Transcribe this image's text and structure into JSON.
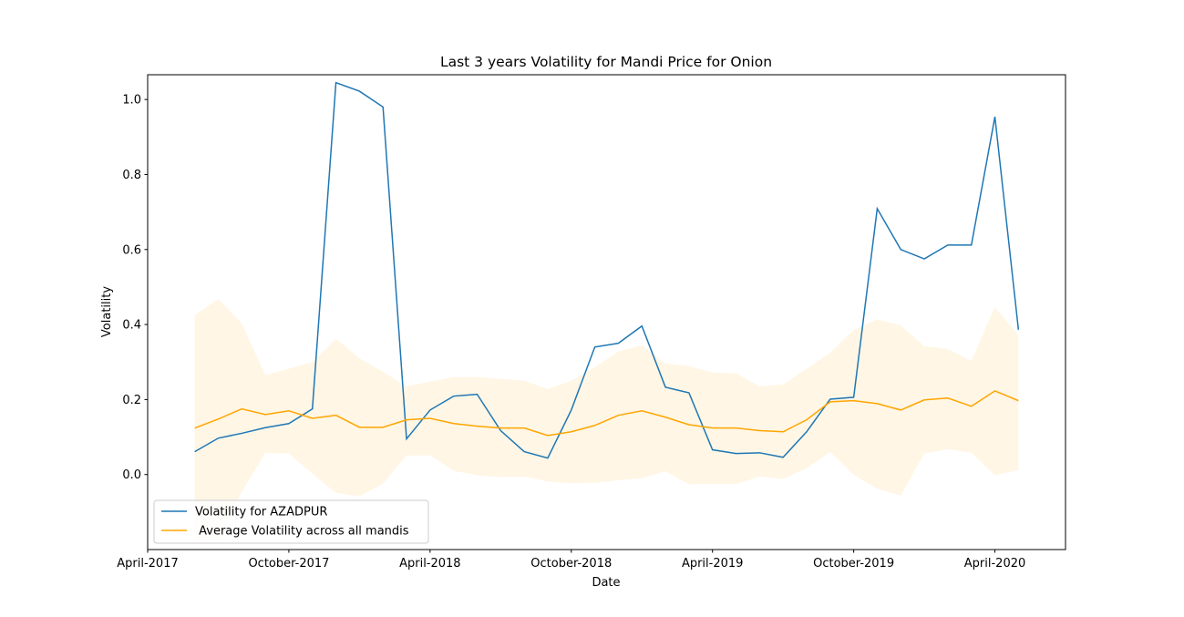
{
  "chart_data": {
    "type": "line",
    "title": "Last 3 years Volatility for Mandi Price for Onion",
    "xlabel": "Date",
    "ylabel": "Volatility",
    "x": [
      "2017-06",
      "2017-07",
      "2017-08",
      "2017-09",
      "2017-10",
      "2017-11",
      "2017-12",
      "2018-01",
      "2018-02",
      "2018-03",
      "2018-04",
      "2018-05",
      "2018-06",
      "2018-07",
      "2018-08",
      "2018-09",
      "2018-10",
      "2018-11",
      "2018-12",
      "2019-01",
      "2019-02",
      "2019-03",
      "2019-04",
      "2019-05",
      "2019-06",
      "2019-07",
      "2019-08",
      "2019-09",
      "2019-10",
      "2019-11",
      "2019-12",
      "2020-01",
      "2020-02",
      "2020-03",
      "2020-04",
      "2020-05"
    ],
    "series": [
      {
        "name": "Volatility for AZADPUR",
        "color": "#1f77b4",
        "values": [
          0.061,
          0.097,
          0.11,
          0.125,
          0.136,
          0.175,
          1.045,
          1.022,
          0.98,
          0.095,
          0.172,
          0.209,
          0.214,
          0.117,
          0.061,
          0.044,
          0.172,
          0.34,
          0.35,
          0.396,
          0.233,
          0.218,
          0.066,
          0.056,
          0.058,
          0.046,
          0.114,
          0.201,
          0.206,
          0.709,
          0.6,
          0.575,
          0.612,
          0.612,
          0.954,
          0.386
        ]
      },
      {
        "name": " Average Volatility across all mandis",
        "color": "#ffa500",
        "values": [
          0.124,
          0.148,
          0.175,
          0.16,
          0.17,
          0.15,
          0.158,
          0.126,
          0.126,
          0.146,
          0.15,
          0.136,
          0.129,
          0.124,
          0.124,
          0.104,
          0.114,
          0.131,
          0.158,
          0.17,
          0.153,
          0.133,
          0.124,
          0.124,
          0.117,
          0.114,
          0.146,
          0.194,
          0.197,
          0.189,
          0.172,
          0.199,
          0.204,
          0.182,
          0.223,
          0.197
        ]
      }
    ],
    "band": {
      "color": "#ffa500",
      "opacity": 0.1,
      "upper": [
        0.425,
        0.468,
        0.403,
        0.265,
        0.282,
        0.3,
        0.362,
        0.31,
        0.274,
        0.235,
        0.248,
        0.26,
        0.26,
        0.255,
        0.25,
        0.228,
        0.25,
        0.286,
        0.328,
        0.345,
        0.296,
        0.289,
        0.272,
        0.27,
        0.235,
        0.24,
        0.282,
        0.325,
        0.386,
        0.413,
        0.398,
        0.342,
        0.335,
        0.303,
        0.447,
        0.371
      ],
      "lower": [
        -0.177,
        -0.172,
        -0.046,
        0.058,
        0.056,
        0.002,
        -0.049,
        -0.058,
        -0.024,
        0.051,
        0.051,
        0.01,
        -0.002,
        -0.007,
        -0.005,
        -0.019,
        -0.023,
        -0.022,
        -0.015,
        -0.01,
        0.009,
        -0.026,
        -0.025,
        -0.025,
        -0.005,
        -0.012,
        0.017,
        0.06,
        0.0,
        -0.038,
        -0.056,
        0.056,
        0.068,
        0.058,
        -0.002,
        0.012
      ]
    },
    "xlim": [
      "2017-04",
      "2020-07"
    ],
    "xticks": [
      {
        "value": "2017-04",
        "label": "April-2017"
      },
      {
        "value": "2017-10",
        "label": "October-2017"
      },
      {
        "value": "2018-04",
        "label": "April-2018"
      },
      {
        "value": "2018-10",
        "label": "October-2018"
      },
      {
        "value": "2019-04",
        "label": "April-2019"
      },
      {
        "value": "2019-10",
        "label": "October-2019"
      },
      {
        "value": "2020-04",
        "label": "April-2020"
      }
    ],
    "ylim": [
      -0.2,
      1.066
    ],
    "yticks": [
      {
        "value": 0,
        "label": "0.0"
      },
      0.2,
      0.4,
      0.6,
      0.8,
      {
        "value": 1,
        "label": "1.0"
      }
    ],
    "legend": "lower left"
  }
}
